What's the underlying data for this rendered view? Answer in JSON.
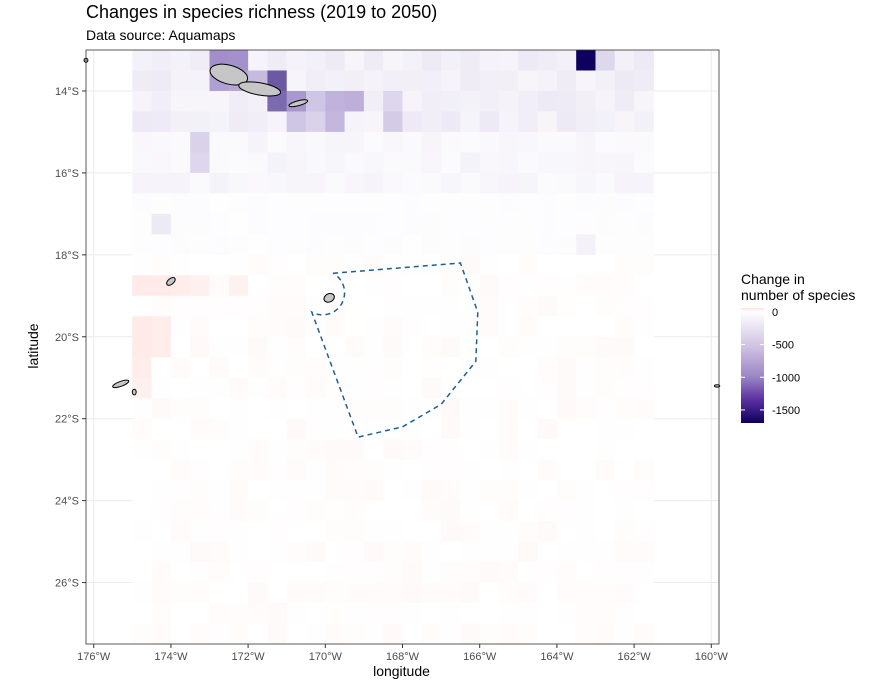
{
  "chart_data": {
    "type": "heatmap",
    "title": "Changes in species richness (2019 to 2050)",
    "subtitle": "Data source: Aquamaps",
    "xlabel": "longitude",
    "ylabel": "latitude",
    "xlim": [
      -176.2,
      -159.8
    ],
    "ylim": [
      -27.5,
      -13.0
    ],
    "x_ticks": [
      -176,
      -174,
      -172,
      -170,
      -168,
      -166,
      -164,
      -162,
      -160
    ],
    "x_tick_labels": [
      "176°W",
      "174°W",
      "172°W",
      "170°W",
      "168°W",
      "166°W",
      "164°W",
      "162°W",
      "160°W"
    ],
    "y_ticks": [
      -14,
      -16,
      -18,
      -20,
      -22,
      -24,
      -26
    ],
    "y_tick_labels": [
      "14°S",
      "16°S",
      "18°S",
      "20°S",
      "22°S",
      "24°S",
      "26°S"
    ],
    "grid": true,
    "legend": {
      "title_lines": [
        "Change in",
        "number of species"
      ],
      "position": "right",
      "ticks": [
        0,
        -500,
        -1000,
        -1500
      ],
      "tick_labels": [
        "0",
        "-500",
        "-1000",
        "-1500"
      ],
      "range": [
        -1700,
        60
      ],
      "colors": {
        "positive": "#fde0dd",
        "zero": "#ffffff",
        "mid": "#9e8ac8",
        "negative": "#0e005f"
      }
    },
    "grid_cells": {
      "lon_min": -175.0,
      "lon_max": -161.5,
      "lat_min": -27.5,
      "lat_max": -13.0,
      "cell_size": 0.5
    },
    "hotspots": [
      {
        "lon": -172.75,
        "lat": -13.25,
        "value": -820
      },
      {
        "lon": -172.25,
        "lat": -13.25,
        "value": -800
      },
      {
        "lon": -172.75,
        "lat": -13.75,
        "value": -700
      },
      {
        "lon": -172.25,
        "lat": -13.75,
        "value": -650
      },
      {
        "lon": -171.75,
        "lat": -13.75,
        "value": -500
      },
      {
        "lon": -171.25,
        "lat": -13.75,
        "value": -1150
      },
      {
        "lon": -171.25,
        "lat": -14.25,
        "value": -1050
      },
      {
        "lon": -170.75,
        "lat": -14.25,
        "value": -750
      },
      {
        "lon": -170.25,
        "lat": -14.25,
        "value": -420
      },
      {
        "lon": -169.75,
        "lat": -14.25,
        "value": -560
      },
      {
        "lon": -169.25,
        "lat": -14.25,
        "value": -580
      },
      {
        "lon": -169.75,
        "lat": -14.75,
        "value": -520
      },
      {
        "lon": -170.75,
        "lat": -14.75,
        "value": -420
      },
      {
        "lon": -170.25,
        "lat": -14.75,
        "value": -330
      },
      {
        "lon": -168.25,
        "lat": -14.25,
        "value": -300
      },
      {
        "lon": -168.25,
        "lat": -14.75,
        "value": -380
      },
      {
        "lon": -173.25,
        "lat": -15.25,
        "value": -330
      },
      {
        "lon": -173.25,
        "lat": -15.75,
        "value": -300
      },
      {
        "lon": -163.25,
        "lat": -13.25,
        "value": -1700
      },
      {
        "lon": -162.75,
        "lat": -13.25,
        "value": -280
      },
      {
        "lon": -174.25,
        "lat": -18.75,
        "value": 40
      },
      {
        "lon": -174.75,
        "lat": -18.75,
        "value": 40
      },
      {
        "lon": -173.75,
        "lat": -18.75,
        "value": 35
      },
      {
        "lon": -173.25,
        "lat": -18.75,
        "value": 30
      },
      {
        "lon": -172.25,
        "lat": -18.75,
        "value": 25
      },
      {
        "lon": -174.25,
        "lat": -19.75,
        "value": 35
      },
      {
        "lon": -174.75,
        "lat": -19.75,
        "value": 40
      },
      {
        "lon": -174.25,
        "lat": -20.25,
        "value": 35
      },
      {
        "lon": -174.75,
        "lat": -20.25,
        "value": 40
      },
      {
        "lon": -174.75,
        "lat": -20.75,
        "value": 35
      },
      {
        "lon": -174.75,
        "lat": -21.25,
        "value": 30
      },
      {
        "lon": -174.25,
        "lat": -17.25,
        "value": -150
      },
      {
        "lon": -163.25,
        "lat": -17.75,
        "value": -100
      }
    ],
    "protected_area_outline": [
      [
        -169.8,
        -18.45
      ],
      [
        -166.5,
        -18.2
      ],
      [
        -166.05,
        -19.4
      ],
      [
        -166.1,
        -20.6
      ],
      [
        -167.0,
        -21.65
      ],
      [
        -168.0,
        -22.2
      ],
      [
        -169.15,
        -22.45
      ],
      [
        -170.35,
        -19.4
      ]
    ],
    "islands": [
      {
        "lon": -172.5,
        "lat": -13.6,
        "rx": 0.5,
        "ry": 0.23,
        "rot": 15
      },
      {
        "lon": -171.7,
        "lat": -13.95,
        "rx": 0.55,
        "ry": 0.15,
        "rot": 10
      },
      {
        "lon": -170.7,
        "lat": -14.3,
        "rx": 0.25,
        "ry": 0.06,
        "rot": -15
      },
      {
        "lon": -174.0,
        "lat": -18.65,
        "rx": 0.13,
        "ry": 0.07,
        "rot": -40
      },
      {
        "lon": -169.9,
        "lat": -19.05,
        "rx": 0.14,
        "ry": 0.1,
        "rot": -25
      },
      {
        "lon": -175.3,
        "lat": -21.15,
        "rx": 0.22,
        "ry": 0.06,
        "rot": -20
      },
      {
        "lon": -174.95,
        "lat": -21.35,
        "rx": 0.05,
        "ry": 0.07,
        "rot": 0
      },
      {
        "lon": -176.2,
        "lat": -13.25,
        "rx": 0.05,
        "ry": 0.05,
        "rot": 0
      },
      {
        "lon": -159.85,
        "lat": -21.2,
        "rx": 0.07,
        "ry": 0.03,
        "rot": 0
      }
    ]
  }
}
